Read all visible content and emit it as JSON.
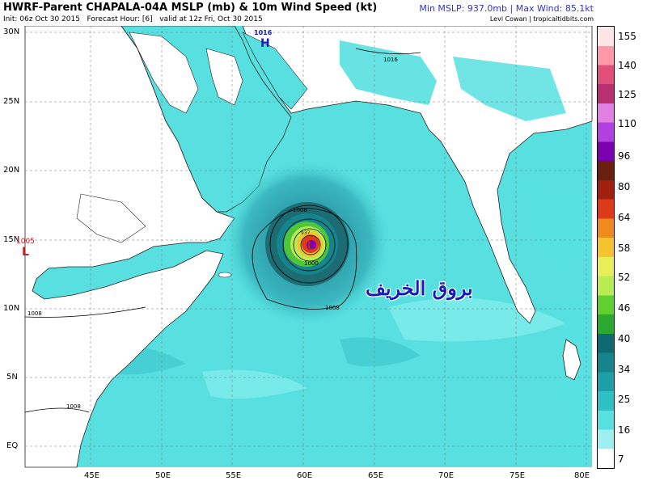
{
  "header": {
    "title": "HWRF-Parent CHAPALA-04A MSLP (mb) & 10m Wind Speed (kt)",
    "subline": "Init: 06z Oct 30 2015   Forecast Hour: [6]   valid at 12z Fri, Oct 30 2015",
    "stats": "Min MSLP: 937.0mb | Max Wind: 85.1kt",
    "credit": "Levi Cowan | tropicaltidbits.com"
  },
  "map": {
    "lat_labels": [
      "30N",
      "25N",
      "20N",
      "15N",
      "10N",
      "5N",
      "EQ"
    ],
    "lon_labels": [
      "45E",
      "50E",
      "55E",
      "60E",
      "65E",
      "70E",
      "75E",
      "80E"
    ],
    "isobar_labels": [
      "1016",
      "1016",
      "1008",
      "1000",
      "1008",
      "1008",
      "1008"
    ],
    "pressure_centers": [
      {
        "type": "H",
        "value": "1016"
      },
      {
        "type": "L",
        "value": "1005"
      },
      {
        "type": "L",
        "value": "937"
      }
    ],
    "colors": {
      "ocean_wind": "#58e0e0",
      "land": "#ffffff",
      "core": "#bf2020"
    }
  },
  "colorbar": {
    "labels": [
      "155",
      "140",
      "125",
      "110",
      "96",
      "80",
      "64",
      "58",
      "52",
      "46",
      "40",
      "34",
      "25",
      "16",
      "7"
    ],
    "colors": [
      "#ffe6e6",
      "#ff99aa",
      "#e0507a",
      "#b83070",
      "#e080e0",
      "#b040e0",
      "#7a00b0",
      "#6a1f0f",
      "#a02010",
      "#dd3a1a",
      "#f08a1e",
      "#f3c430",
      "#e8ee55",
      "#b8ec50",
      "#60d030",
      "#2aa830",
      "#0e6a70",
      "#14858c",
      "#1e9ea6",
      "#2ec0c4",
      "#58e0e0",
      "#9ef0f0",
      "#ffffff"
    ]
  },
  "overlay": {
    "arabic_text": "بروق الخريف"
  }
}
